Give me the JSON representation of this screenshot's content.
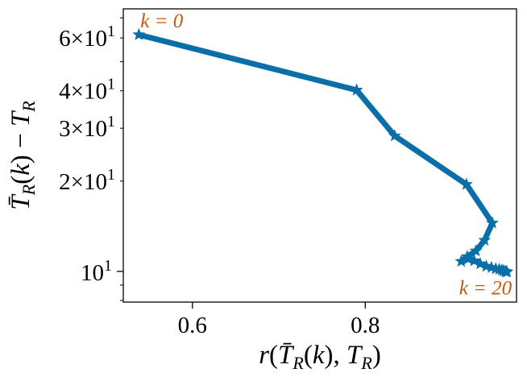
{
  "chart_data": {
    "type": "line",
    "title": "",
    "xlabel": "r(T̄_R(k), T_R)",
    "ylabel": "T̄_R(k) − T_R",
    "x_scale": "linear",
    "y_scale": "log",
    "xlim": [
      0.52,
      0.975
    ],
    "ylim": [
      7.9,
      75
    ],
    "x_ticks": [
      0.6,
      0.8
    ],
    "x_tick_labels": [
      "0.6",
      "0.8"
    ],
    "y_major_ticks": [
      10
    ],
    "y_major_tick_labels": [
      "10^1"
    ],
    "y_minor_ticks": [
      20,
      30,
      40,
      60
    ],
    "y_minor_tick_labels": [
      "2×10^1",
      "3×10^1",
      "4×10^1",
      "6×10^1"
    ],
    "y_unlabeled_minor_ticks": [
      8,
      9,
      50,
      70
    ],
    "grid": false,
    "legend": "none",
    "series": [
      {
        "color": "#0a6ea8",
        "marker": "star",
        "x": [
          0.538,
          0.79,
          0.834,
          0.917,
          0.947,
          0.938,
          0.928,
          0.918,
          0.911,
          0.919,
          0.926,
          0.933,
          0.94,
          0.946,
          0.951,
          0.955,
          0.958,
          0.96,
          0.962,
          0.963,
          0.964
        ],
        "y": [
          61.5,
          40.2,
          28.3,
          19.5,
          14.5,
          12.7,
          11.7,
          11.2,
          10.8,
          11.0,
          10.85,
          10.6,
          10.4,
          10.3,
          10.2,
          10.15,
          10.1,
          10.05,
          10.0,
          9.98,
          9.95
        ]
      }
    ],
    "annotations": [
      {
        "text": "k = 0",
        "near": "first point"
      },
      {
        "text": "k = 20",
        "near": "last point"
      }
    ]
  }
}
